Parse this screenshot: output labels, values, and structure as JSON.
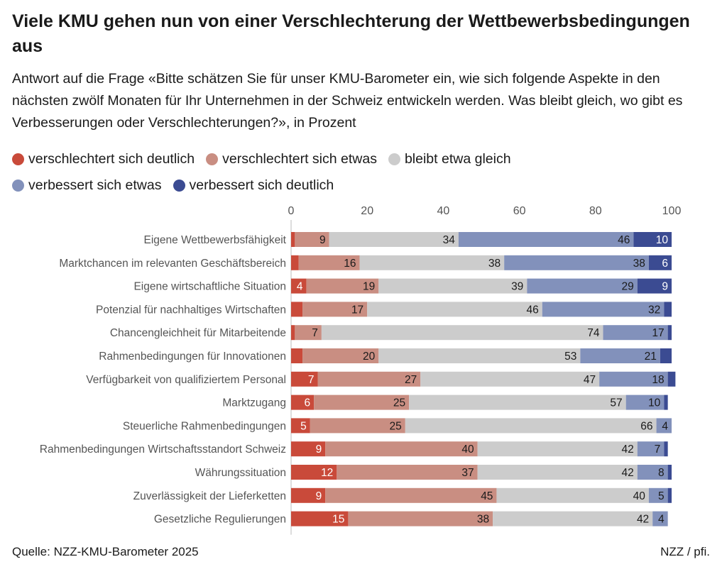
{
  "title": "Viele KMU gehen nun von einer Verschlechterung der Wettbewerbsbedingungen aus",
  "subtitle": "Antwort auf die Frage «Bitte schätzen Sie für unser KMU-Barometer ein, wie sich folgende Aspekte in den nächsten zwölf Monaten für Ihr Unternehmen in der Schweiz entwickeln werden. Was bleibt gleich, wo gibt es Verbesserungen oder Verschlechterungen?», in Prozent",
  "footer": {
    "source": "Quelle: NZZ-KMU-Barometer 2025",
    "credit": "NZZ / pfi."
  },
  "legend": [
    {
      "label": "verschlechtert sich deutlich",
      "color": "#c94a3a"
    },
    {
      "label": "verschlechtert sich etwas",
      "color": "#c98e82"
    },
    {
      "label": "bleibt etwa gleich",
      "color": "#cccccc"
    },
    {
      "label": "verbessert sich etwas",
      "color": "#8291bb"
    },
    {
      "label": "verbessert sich deutlich",
      "color": "#3b4b92"
    }
  ],
  "chart_data": {
    "type": "bar",
    "orientation": "horizontal",
    "stacked": true,
    "xlim": [
      0,
      100
    ],
    "xticks": [
      "0",
      "20",
      "40",
      "60",
      "80",
      "100"
    ],
    "grid": false,
    "legend_position": "top-left",
    "categories": [
      "Eigene Wettbewerbsfähigkeit",
      "Marktchancen im relevanten Geschäftsbereich",
      "Eigene wirtschaftliche Situation",
      "Potenzial für nachhaltiges Wirtschaften",
      "Chancengleichheit für Mitarbeitende",
      "Rahmenbedingungen für Innovationen",
      "Verfügbarkeit von qualifiziertem Personal",
      "Marktzugang",
      "Steuerliche Rahmenbedingungen",
      "Rahmenbedingungen Wirtschaftsstandort Schweiz",
      "Währungssituation",
      "Zuverlässigkeit der Lieferketten",
      "Gesetzliche Regulierungen"
    ],
    "series": [
      {
        "name": "verschlechtert sich deutlich",
        "color": "#c94a3a",
        "values": [
          1,
          2,
          4,
          3,
          1,
          3,
          7,
          6,
          5,
          9,
          12,
          9,
          15
        ],
        "labels": [
          "",
          "",
          "4",
          "",
          "",
          "",
          "7",
          "6",
          "5",
          "9",
          "12",
          "9",
          "15"
        ]
      },
      {
        "name": "verschlechtert sich etwas",
        "color": "#c98e82",
        "values": [
          9,
          16,
          19,
          17,
          7,
          20,
          27,
          25,
          25,
          40,
          37,
          45,
          38
        ],
        "labels": [
          "9",
          "16",
          "19",
          "17",
          "7",
          "20",
          "27",
          "25",
          "25",
          "40",
          "37",
          "45",
          "38"
        ]
      },
      {
        "name": "bleibt etwa gleich",
        "color": "#cccccc",
        "values": [
          34,
          38,
          39,
          46,
          74,
          53,
          47,
          57,
          66,
          42,
          42,
          40,
          42
        ],
        "labels": [
          "34",
          "38",
          "39",
          "46",
          "74",
          "53",
          "47",
          "57",
          "66",
          "42",
          "42",
          "40",
          "42"
        ]
      },
      {
        "name": "verbessert sich etwas",
        "color": "#8291bb",
        "values": [
          46,
          38,
          29,
          32,
          17,
          21,
          18,
          10,
          4,
          7,
          8,
          5,
          4
        ],
        "labels": [
          "46",
          "38",
          "29",
          "32",
          "17",
          "21",
          "18",
          "10",
          "4",
          "7",
          "8",
          "5",
          "4"
        ]
      },
      {
        "name": "verbessert sich deutlich",
        "color": "#3b4b92",
        "values": [
          10,
          6,
          9,
          2,
          1,
          3,
          2,
          1,
          0,
          1,
          1,
          1,
          0
        ],
        "labels": [
          "10",
          "6",
          "9",
          "",
          "",
          "",
          "",
          "",
          "",
          "",
          "",
          "",
          ""
        ]
      }
    ]
  }
}
